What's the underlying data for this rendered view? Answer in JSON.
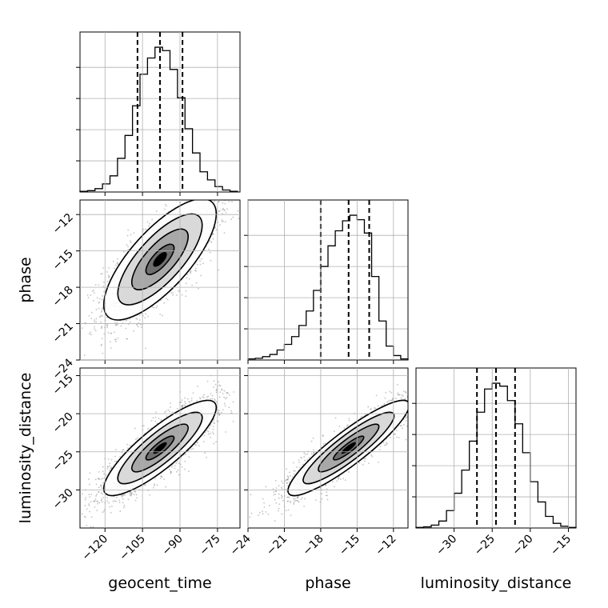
{
  "chart_data": {
    "type": "corner",
    "parameters": [
      "geocent_time",
      "phase",
      "luminosity_distance"
    ],
    "axis_labels": {
      "x": [
        "geocent_time",
        "phase",
        "luminosity_distance"
      ],
      "y_rows": [
        "",
        "phase",
        "luminosity_distance"
      ]
    },
    "ranges": {
      "geocent_time": [
        -130,
        -66
      ],
      "phase": [
        -24,
        -10.8
      ],
      "luminosity_distance": [
        -35,
        -14
      ]
    },
    "ticks": {
      "geocent_time": [
        -120,
        -105,
        -90,
        -75
      ],
      "phase": [
        -24,
        -21,
        -18,
        -15,
        -12
      ],
      "luminosity_distance": [
        -30,
        -25,
        -20,
        -15
      ]
    },
    "tick_labels": {
      "geocent_time": [
        "−120",
        "−105",
        "−90",
        "−75"
      ],
      "phase": [
        "−24",
        "−21",
        "−18",
        "−15",
        "−12"
      ],
      "luminosity_distance": [
        "−30",
        "−25",
        "−20",
        "−15"
      ]
    },
    "quantiles": {
      "geocent_time": [
        -107,
        -98,
        -89
      ],
      "phase": [
        -18,
        -15.7,
        -14
      ],
      "luminosity_distance": [
        -27,
        -24.5,
        -22
      ]
    },
    "histograms": {
      "geocent_time": {
        "edges": [
          -130,
          -127,
          -124,
          -121,
          -118,
          -115,
          -112,
          -109,
          -106,
          -103,
          -100,
          -97,
          -94,
          -91,
          -88,
          -85,
          -82,
          -79,
          -76,
          -73,
          -70,
          -67
        ],
        "counts": [
          1,
          2,
          5,
          12,
          24,
          50,
          84,
          128,
          175,
          199,
          215,
          210,
          182,
          140,
          94,
          58,
          30,
          18,
          8,
          3,
          1
        ]
      },
      "phase": {
        "edges": [
          -24,
          -23.4,
          -22.8,
          -22.2,
          -21.6,
          -21,
          -20.4,
          -19.8,
          -19.2,
          -18.6,
          -18,
          -17.4,
          -16.8,
          -16.2,
          -15.6,
          -15,
          -14.4,
          -13.8,
          -13.2,
          -12.6,
          -12,
          -11.4,
          -10.8
        ],
        "counts": [
          2,
          3,
          6,
          10,
          18,
          28,
          42,
          62,
          88,
          125,
          168,
          205,
          232,
          250,
          260,
          252,
          228,
          150,
          70,
          25,
          8,
          2
        ]
      },
      "luminosity_distance": {
        "edges": [
          -35,
          -34,
          -33,
          -32,
          -31,
          -30,
          -29,
          -28,
          -27,
          -26,
          -25,
          -24,
          -23,
          -22,
          -21,
          -20,
          -19,
          -18,
          -17,
          -16,
          -15,
          -14
        ],
        "counts": [
          1,
          2,
          5,
          12,
          30,
          60,
          100,
          150,
          200,
          240,
          250,
          245,
          220,
          180,
          130,
          80,
          45,
          20,
          8,
          3,
          1
        ]
      }
    },
    "correlations": {
      "phase_vs_geocent_time": 0.75,
      "luminosity_distance_vs_geocent_time": 0.85,
      "luminosity_distance_vs_phase": 0.9
    },
    "contour_levels_sigma": [
      0.5,
      1.0,
      1.5,
      2.0
    ],
    "grid": true
  }
}
